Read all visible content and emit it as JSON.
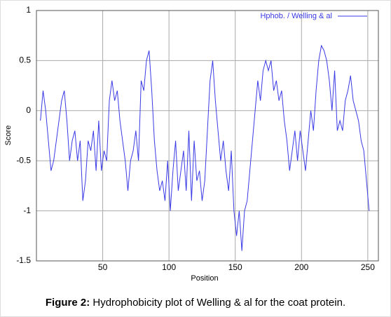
{
  "chart_data": {
    "type": "line",
    "x_label": "Position",
    "y_label": "Score",
    "caption_label": "Figure 2:",
    "caption_text": " Hydrophobicity plot of Welling & al for the coat protein.",
    "xlim": [
      0,
      258
    ],
    "xticks": [
      50,
      100,
      150,
      200,
      250
    ],
    "ylim": [
      -1.5,
      1
    ],
    "yticks": [
      1,
      0.5,
      0,
      -0.5,
      -1,
      -1.5
    ],
    "grid": true,
    "legend": "top-right",
    "x": [
      3,
      5,
      7,
      9,
      11,
      13,
      15,
      17,
      19,
      21,
      23,
      25,
      27,
      29,
      31,
      33,
      35,
      37,
      39,
      41,
      43,
      45,
      47,
      49,
      51,
      53,
      55,
      57,
      59,
      61,
      63,
      65,
      67,
      69,
      71,
      73,
      75,
      77,
      79,
      81,
      83,
      85,
      87,
      89,
      91,
      93,
      95,
      97,
      99,
      101,
      103,
      105,
      107,
      109,
      111,
      113,
      115,
      117,
      119,
      121,
      123,
      125,
      127,
      129,
      131,
      133,
      135,
      137,
      139,
      141,
      143,
      145,
      147,
      149,
      151,
      153,
      155,
      157,
      159,
      161,
      163,
      165,
      167,
      169,
      171,
      173,
      175,
      177,
      179,
      181,
      183,
      185,
      187,
      189,
      191,
      193,
      195,
      197,
      199,
      201,
      203,
      205,
      207,
      209,
      211,
      213,
      215,
      217,
      219,
      221,
      223,
      225,
      227,
      229,
      231,
      233,
      235,
      237,
      239,
      241,
      243,
      245,
      247,
      249,
      251
    ],
    "series": [
      {
        "name": "Hphob. / Welling & al",
        "color": "#3a3ae6",
        "values": [
          -0.1,
          0.2,
          0.0,
          -0.3,
          -0.6,
          -0.5,
          -0.3,
          -0.1,
          0.1,
          0.2,
          -0.1,
          -0.5,
          -0.3,
          -0.2,
          -0.5,
          -0.3,
          -0.9,
          -0.7,
          -0.3,
          -0.4,
          -0.2,
          -0.6,
          -0.1,
          -0.6,
          -0.4,
          -0.5,
          0.1,
          0.3,
          0.1,
          0.2,
          -0.1,
          -0.3,
          -0.5,
          -0.8,
          -0.5,
          -0.4,
          -0.2,
          -0.5,
          0.3,
          0.2,
          0.5,
          0.6,
          0.2,
          -0.3,
          -0.6,
          -0.8,
          -0.7,
          -0.9,
          -0.5,
          -1.0,
          -0.6,
          -0.3,
          -0.8,
          -0.6,
          -0.4,
          -0.8,
          -0.2,
          -0.9,
          -0.3,
          -0.7,
          -0.6,
          -0.9,
          -0.7,
          -0.2,
          0.3,
          0.5,
          0.1,
          -0.2,
          -0.5,
          -0.3,
          -0.6,
          -0.8,
          -0.4,
          -1.0,
          -1.25,
          -1.0,
          -1.4,
          -1.0,
          -0.9,
          -0.6,
          -0.3,
          0.0,
          0.3,
          0.1,
          0.4,
          0.5,
          0.4,
          0.5,
          0.2,
          0.3,
          0.1,
          0.2,
          -0.1,
          -0.3,
          -0.6,
          -0.4,
          -0.2,
          -0.5,
          -0.2,
          -0.4,
          -0.6,
          -0.3,
          0.0,
          -0.2,
          0.2,
          0.5,
          0.65,
          0.6,
          0.5,
          0.3,
          0.0,
          0.4,
          -0.2,
          -0.1,
          -0.2,
          0.1,
          0.2,
          0.35,
          0.1,
          0.0,
          -0.1,
          -0.3,
          -0.4,
          -0.7,
          -1.0
        ]
      }
    ]
  }
}
